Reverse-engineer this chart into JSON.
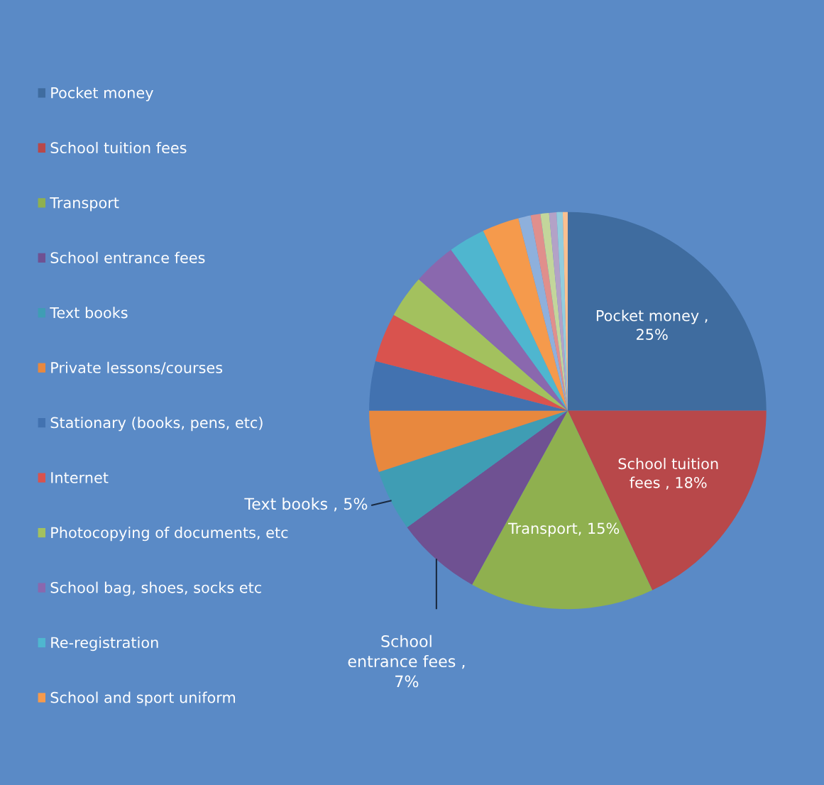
{
  "chart_data": {
    "type": "pie",
    "categories": [
      "Pocket money",
      "School tuition fees",
      "Transport",
      "School entrance fees",
      "Text books",
      "Private lessons/courses",
      "Stationary (books, pens, etc)",
      "Internet",
      "Photocopying of documents, etc",
      "School bag, shoes, socks etc",
      "Re-registration",
      "School and sport uniform",
      null,
      null,
      null,
      null,
      null,
      null
    ],
    "values": [
      25,
      18,
      15,
      7,
      5,
      5,
      4,
      4,
      3.5,
      3.5,
      3,
      3,
      1,
      0.8,
      0.7,
      0.6,
      0.5,
      0.4
    ],
    "colors": [
      "#3f6c9f",
      "#b8484a",
      "#8fb04f",
      "#6f5192",
      "#3f9db4",
      "#e8883e",
      "#4272b0",
      "#d9534e",
      "#a3c15e",
      "#8a68ae",
      "#4fb6cf",
      "#f59a4c",
      "#8eb0dc",
      "#e08f8c",
      "#c3d69b",
      "#b3a2c7",
      "#93cddd",
      "#fac090"
    ],
    "value_labels": [
      "Pocket money ,\n25%",
      "School tuition\nfees , 18%",
      "Transport, 15%",
      "School\nentrance fees ,\n7%",
      "Text books , 5%",
      null,
      null,
      null,
      null,
      null,
      null,
      null,
      null,
      null,
      null,
      null,
      null,
      null
    ],
    "legend": "left"
  }
}
